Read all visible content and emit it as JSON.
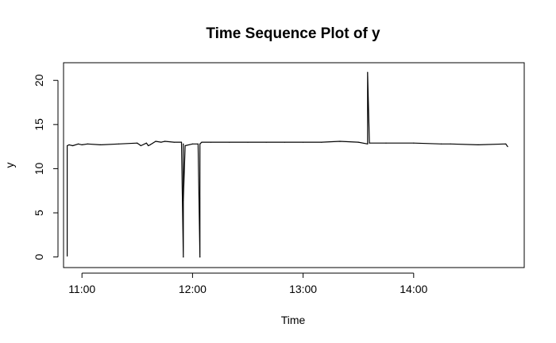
{
  "chart_data": {
    "type": "line",
    "title": "Time Sequence Plot of y",
    "xlabel": "Time",
    "ylabel": "y",
    "x_ticks": [
      "11:00",
      "12:00",
      "13:00",
      "14:00"
    ],
    "y_ticks": [
      "0",
      "5",
      "10",
      "15",
      "20"
    ],
    "xlim": [
      "10:50",
      "15:00"
    ],
    "ylim": [
      -1.2,
      22
    ],
    "grid": false,
    "series": [
      {
        "color": "#000000",
        "x": [
          "10:52",
          "10:52",
          "10:53",
          "10:55",
          "10:58",
          "11:00",
          "11:03",
          "11:10",
          "11:20",
          "11:30",
          "11:32",
          "11:35",
          "11:36",
          "11:37",
          "11:40",
          "11:43",
          "11:45",
          "11:50",
          "11:54",
          "11:55",
          "11:55",
          "11:55",
          "11:56",
          "12:00",
          "12:03",
          "12:04",
          "12:04",
          "12:05",
          "12:10",
          "12:20",
          "12:30",
          "12:40",
          "12:50",
          "13:00",
          "13:10",
          "13:20",
          "13:30",
          "13:35",
          "13:35",
          "13:36",
          "13:45",
          "14:00",
          "14:15",
          "14:20",
          "14:35",
          "14:50",
          "14:51"
        ],
        "y": [
          0.1,
          12.6,
          12.7,
          12.6,
          12.8,
          12.7,
          12.8,
          12.7,
          12.8,
          12.9,
          12.6,
          12.9,
          12.6,
          12.7,
          13.1,
          13.0,
          13.1,
          13.0,
          13.0,
          0.0,
          12.8,
          6.4,
          12.6,
          12.8,
          12.8,
          0.0,
          12.8,
          13.0,
          13.0,
          13.0,
          13.0,
          13.0,
          13.0,
          13.0,
          13.0,
          13.1,
          13.0,
          12.8,
          20.9,
          12.9,
          12.9,
          12.9,
          12.8,
          12.8,
          12.7,
          12.8,
          12.5
        ]
      }
    ]
  }
}
